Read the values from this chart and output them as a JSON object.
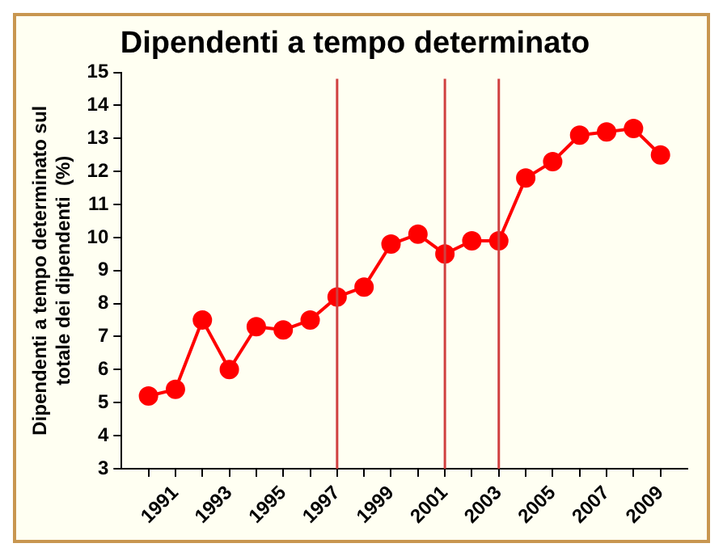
{
  "chart_data": {
    "type": "line",
    "title": "Dipendenti a tempo determinato",
    "ylabel": "Dipendenti a tempo determinato sul\ntotale dei dipendenti  (%)",
    "x": [
      1990,
      1991,
      1992,
      1993,
      1994,
      1995,
      1996,
      1997,
      1998,
      1999,
      2000,
      2001,
      2002,
      2003,
      2004,
      2005,
      2006,
      2007,
      2008,
      2009
    ],
    "series": [
      {
        "color": "#ff0000",
        "values": [
          5.2,
          5.4,
          7.5,
          6.0,
          7.3,
          7.2,
          7.5,
          8.2,
          8.5,
          9.8,
          10.1,
          9.5,
          9.9,
          9.9,
          11.8,
          12.3,
          13.1,
          13.2,
          13.3,
          12.5
        ]
      }
    ],
    "xlim": [
      1989,
      2010
    ],
    "xticks": [
      {
        "value": 1990,
        "label": null
      },
      1991,
      {
        "value": 1992,
        "label": null
      },
      1993,
      {
        "value": 1994,
        "label": null
      },
      1995,
      {
        "value": 1996,
        "label": null
      },
      1997,
      {
        "value": 1998,
        "label": null
      },
      1999,
      {
        "value": 2000,
        "label": null
      },
      2001,
      {
        "value": 2002,
        "label": null
      },
      2003,
      {
        "value": 2004,
        "label": null
      },
      2005,
      {
        "value": 2006,
        "label": null
      },
      2007,
      {
        "value": 2008,
        "label": null
      },
      2009
    ],
    "ylim": [
      3,
      15
    ],
    "yticks": [
      3,
      4,
      5,
      6,
      7,
      8,
      9,
      10,
      11,
      12,
      13,
      14,
      15
    ],
    "ref_lines": [
      {
        "axis": "x",
        "value": 1997,
        "color": "#d04040"
      },
      {
        "axis": "x",
        "value": 2001,
        "color": "#d04040"
      },
      {
        "axis": "x",
        "value": 2003,
        "color": "#d04040"
      }
    ],
    "grid": false,
    "legend": false,
    "marker": "circle",
    "line_style": "solid"
  }
}
